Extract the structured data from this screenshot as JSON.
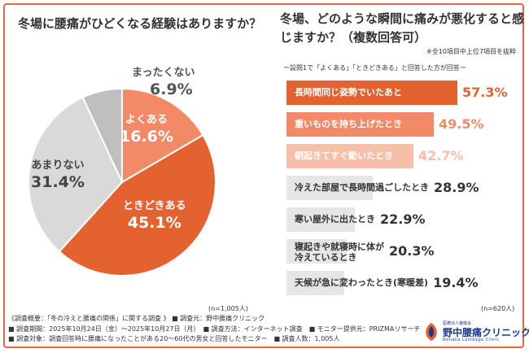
{
  "left_panel": {
    "question": "冬場に腰痛がひどくなる経験はありますか？",
    "n_label": "(n=1,005人)"
  },
  "right_panel": {
    "question": "冬場、どのような瞬間に痛みが悪化すると感じますか？（複数回答可）",
    "note": "※全10項目中上位7項目を抜粋",
    "subnote": "ー設問1で「よくある」「ときどきある」と回答した方が回答ー",
    "n_label": "(n=620人)"
  },
  "chart_data": [
    {
      "type": "pie",
      "categories": [
        "よくある",
        "ときどきある",
        "あまりない",
        "まったくない"
      ],
      "values": [
        16.6,
        45.1,
        31.4,
        6.9
      ],
      "labels": [
        "16.6%",
        "45.1%",
        "31.4%",
        "6.9%"
      ],
      "colors": [
        "#F28A68",
        "#E4622F",
        "#D9D9D9",
        "#BFBFBF"
      ],
      "start": "top, clockwise"
    },
    {
      "type": "bar",
      "orientation": "horizontal",
      "categories": [
        "長時間同じ姿勢でいたあと",
        "重いものを持ち上げたとき",
        "朝起きてすぐ動いたとき",
        "冷えた部屋で長時間過ごしたとき",
        "寒い屋外に出たとき",
        "寝起きや就寝時に体が冷えているとき",
        "天候が急に変わったとき(寒暖差)"
      ],
      "values": [
        57.3,
        49.5,
        42.7,
        28.9,
        22.9,
        20.3,
        19.4
      ],
      "labels": [
        "57.3%",
        "49.5%",
        "42.7%",
        "28.9%",
        "22.9%",
        "20.3%",
        "19.4%"
      ],
      "colors": [
        "#E4622F",
        "#F28A68",
        "#F8BFA8",
        "#E6E6E6",
        "#E6E6E6",
        "#E6E6E6",
        "#E6E6E6"
      ],
      "label_colors": [
        "#FFFFFF",
        "#FFFFFF",
        "#FFFFFF",
        "#333333",
        "#333333",
        "#333333",
        "#333333"
      ],
      "value_colors": [
        "#E4622F",
        "#F28A68",
        "#F8BFA8",
        "#333333",
        "#333333",
        "#333333",
        "#333333"
      ]
    }
  ],
  "footer": {
    "line1": "《調査概要：「冬の冷えと腰痛の関係」に関する調査 》 ■ 調査元：野中腰痛クリニック",
    "line2": "■ 調査期間：2025年10月24日（金）～2025年10月27日（月）　■ 調査方法：インターネット調査　■ モニター提供元：PRIZMAリサーチ",
    "line3": "■ 調査対象：調査回答時に腰痛になったことがある20～60代の男女と回答したモニター　■ 調査人数：1,005人"
  },
  "logo": {
    "small": "医療法人雄敬会",
    "main": "野中腰痛クリニック",
    "en": "Nonaka Lumbago Clinic"
  }
}
